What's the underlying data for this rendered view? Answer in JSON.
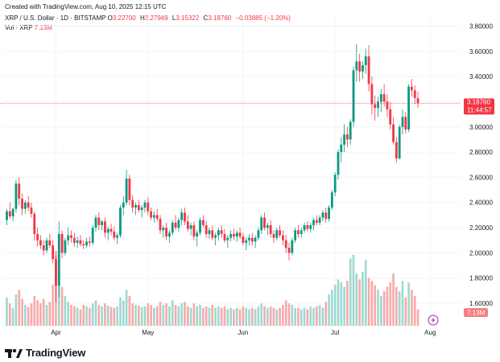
{
  "header": {
    "created": "Created with TradingView.com, Aug 10, 2025 12:15 UTC",
    "symbol": "XRP / U.S. Dollar · 1D · BITSTAMP",
    "ohlc": [
      {
        "k": "O",
        "v": "3.22700"
      },
      {
        "k": "H",
        "v": "3.27949"
      },
      {
        "k": "L",
        "v": "3.15322"
      },
      {
        "k": "C",
        "v": "3.18760"
      }
    ],
    "change": "−0.03885 (−1.20%)",
    "vol_label": "Vol · XRP",
    "vol_value": "7.13M"
  },
  "price_tag": {
    "price": "3.18760",
    "countdown": "11:44:57"
  },
  "vol_tag": "7.13M",
  "brand": "TradingView",
  "colors": {
    "up": "#089981",
    "down": "#f23645",
    "vol_up": "#9ed8d0",
    "vol_down": "#f7a9a9",
    "grid": "#f0f3fa"
  },
  "chart_data": {
    "type": "candlestick",
    "ylim": [
      1.4,
      3.9
    ],
    "yticks": [
      "3.80000",
      "3.60000",
      "3.40000",
      "3.20000",
      "3.00000",
      "2.80000",
      "2.60000",
      "2.40000",
      "2.20000",
      "2.00000",
      "1.80000",
      "1.60000"
    ],
    "xticks": [
      {
        "label": "Apr",
        "index": 16
      },
      {
        "label": "May",
        "index": 46
      },
      {
        "label": "Jun",
        "index": 77
      },
      {
        "label": "Jul",
        "index": 107
      },
      {
        "label": "Aug",
        "index": 138
      }
    ],
    "last_price": 3.1876,
    "candles": [
      [
        2.26,
        2.35,
        2.22,
        2.33
      ],
      [
        2.33,
        2.4,
        2.27,
        2.29
      ],
      [
        2.29,
        2.36,
        2.25,
        2.35
      ],
      [
        2.35,
        2.58,
        2.32,
        2.55
      ],
      [
        2.55,
        2.6,
        2.38,
        2.43
      ],
      [
        2.43,
        2.47,
        2.3,
        2.35
      ],
      [
        2.35,
        2.42,
        2.31,
        2.4
      ],
      [
        2.4,
        2.45,
        2.33,
        2.36
      ],
      [
        2.36,
        2.4,
        2.28,
        2.31
      ],
      [
        2.31,
        2.33,
        2.1,
        2.15
      ],
      [
        2.15,
        2.2,
        2.05,
        2.1
      ],
      [
        2.1,
        2.14,
        2.03,
        2.06
      ],
      [
        2.06,
        2.1,
        1.98,
        2.02
      ],
      [
        2.02,
        2.12,
        2.0,
        2.1
      ],
      [
        2.1,
        2.15,
        2.04,
        2.06
      ],
      [
        2.06,
        2.1,
        1.92,
        1.95
      ],
      [
        1.95,
        1.98,
        1.61,
        1.74
      ],
      [
        1.74,
        2.25,
        1.65,
        2.15
      ],
      [
        2.15,
        2.18,
        1.96,
        2.0
      ],
      [
        2.0,
        2.12,
        1.98,
        2.1
      ],
      [
        2.1,
        2.2,
        2.06,
        2.14
      ],
      [
        2.14,
        2.18,
        2.08,
        2.12
      ],
      [
        2.12,
        2.16,
        2.05,
        2.08
      ],
      [
        2.08,
        2.13,
        2.04,
        2.1
      ],
      [
        2.1,
        2.14,
        2.05,
        2.07
      ],
      [
        2.07,
        2.1,
        2.03,
        2.06
      ],
      [
        2.06,
        2.12,
        2.04,
        2.09
      ],
      [
        2.09,
        2.13,
        2.05,
        2.08
      ],
      [
        2.08,
        2.22,
        2.06,
        2.2
      ],
      [
        2.2,
        2.3,
        2.17,
        2.28
      ],
      [
        2.28,
        2.32,
        2.18,
        2.22
      ],
      [
        2.22,
        2.26,
        2.18,
        2.25
      ],
      [
        2.25,
        2.28,
        2.12,
        2.16
      ],
      [
        2.16,
        2.21,
        2.1,
        2.19
      ],
      [
        2.19,
        2.23,
        2.14,
        2.17
      ],
      [
        2.17,
        2.21,
        2.1,
        2.12
      ],
      [
        2.12,
        2.16,
        2.07,
        2.14
      ],
      [
        2.14,
        2.38,
        2.12,
        2.36
      ],
      [
        2.36,
        2.45,
        2.3,
        2.4
      ],
      [
        2.4,
        2.66,
        2.38,
        2.59
      ],
      [
        2.59,
        2.62,
        2.38,
        2.42
      ],
      [
        2.42,
        2.46,
        2.32,
        2.36
      ],
      [
        2.36,
        2.4,
        2.3,
        2.38
      ],
      [
        2.38,
        2.42,
        2.32,
        2.34
      ],
      [
        2.34,
        2.38,
        2.28,
        2.36
      ],
      [
        2.36,
        2.42,
        2.32,
        2.4
      ],
      [
        2.4,
        2.44,
        2.3,
        2.33
      ],
      [
        2.33,
        2.36,
        2.26,
        2.28
      ],
      [
        2.28,
        2.33,
        2.24,
        2.3
      ],
      [
        2.3,
        2.35,
        2.25,
        2.27
      ],
      [
        2.27,
        2.3,
        2.15,
        2.18
      ],
      [
        2.18,
        2.22,
        2.12,
        2.2
      ],
      [
        2.2,
        2.24,
        2.1,
        2.13
      ],
      [
        2.13,
        2.18,
        2.08,
        2.16
      ],
      [
        2.16,
        2.26,
        2.14,
        2.24
      ],
      [
        2.24,
        2.3,
        2.18,
        2.2
      ],
      [
        2.2,
        2.28,
        2.17,
        2.26
      ],
      [
        2.26,
        2.35,
        2.22,
        2.32
      ],
      [
        2.32,
        2.36,
        2.22,
        2.25
      ],
      [
        2.25,
        2.3,
        2.17,
        2.19
      ],
      [
        2.19,
        2.24,
        2.14,
        2.22
      ],
      [
        2.22,
        2.25,
        2.1,
        2.13
      ],
      [
        2.13,
        2.18,
        2.05,
        2.16
      ],
      [
        2.16,
        2.28,
        2.14,
        2.26
      ],
      [
        2.26,
        2.3,
        2.2,
        2.22
      ],
      [
        2.22,
        2.25,
        2.12,
        2.15
      ],
      [
        2.15,
        2.2,
        2.11,
        2.18
      ],
      [
        2.18,
        2.22,
        2.1,
        2.12
      ],
      [
        2.12,
        2.16,
        2.06,
        2.14
      ],
      [
        2.14,
        2.2,
        2.1,
        2.18
      ],
      [
        2.18,
        2.22,
        2.12,
        2.15
      ],
      [
        2.15,
        2.19,
        2.08,
        2.1
      ],
      [
        2.1,
        2.14,
        2.04,
        2.12
      ],
      [
        2.12,
        2.18,
        2.09,
        2.15
      ],
      [
        2.15,
        2.19,
        2.1,
        2.13
      ],
      [
        2.13,
        2.18,
        2.09,
        2.16
      ],
      [
        2.16,
        2.2,
        2.11,
        2.13
      ],
      [
        2.13,
        2.16,
        2.06,
        2.08
      ],
      [
        2.08,
        2.12,
        2.02,
        2.1
      ],
      [
        2.1,
        2.15,
        2.06,
        2.12
      ],
      [
        2.12,
        2.16,
        2.06,
        2.09
      ],
      [
        2.09,
        2.14,
        2.04,
        2.12
      ],
      [
        2.12,
        2.2,
        2.1,
        2.18
      ],
      [
        2.18,
        2.3,
        2.15,
        2.28
      ],
      [
        2.28,
        2.32,
        2.18,
        2.2
      ],
      [
        2.2,
        2.24,
        2.14,
        2.22
      ],
      [
        2.22,
        2.26,
        2.12,
        2.15
      ],
      [
        2.15,
        2.18,
        2.08,
        2.12
      ],
      [
        2.12,
        2.2,
        2.1,
        2.18
      ],
      [
        2.18,
        2.22,
        2.12,
        2.14
      ],
      [
        2.14,
        2.18,
        2.06,
        2.1
      ],
      [
        2.1,
        2.14,
        2.0,
        2.04
      ],
      [
        2.04,
        2.08,
        1.94,
        2.0
      ],
      [
        2.0,
        2.12,
        1.98,
        2.1
      ],
      [
        2.1,
        2.2,
        2.08,
        2.18
      ],
      [
        2.18,
        2.22,
        2.12,
        2.15
      ],
      [
        2.15,
        2.2,
        2.12,
        2.18
      ],
      [
        2.18,
        2.24,
        2.16,
        2.22
      ],
      [
        2.22,
        2.25,
        2.17,
        2.19
      ],
      [
        2.19,
        2.24,
        2.16,
        2.22
      ],
      [
        2.22,
        2.28,
        2.18,
        2.26
      ],
      [
        2.26,
        2.3,
        2.22,
        2.24
      ],
      [
        2.24,
        2.3,
        2.22,
        2.28
      ],
      [
        2.28,
        2.34,
        2.25,
        2.32
      ],
      [
        2.32,
        2.36,
        2.24,
        2.27
      ],
      [
        2.27,
        2.38,
        2.25,
        2.36
      ],
      [
        2.36,
        2.5,
        2.34,
        2.48
      ],
      [
        2.48,
        2.64,
        2.45,
        2.62
      ],
      [
        2.62,
        2.82,
        2.58,
        2.8
      ],
      [
        2.8,
        2.92,
        2.72,
        2.86
      ],
      [
        2.86,
        3.02,
        2.8,
        2.94
      ],
      [
        2.94,
        3.0,
        2.84,
        2.9
      ],
      [
        2.9,
        3.06,
        2.86,
        3.04
      ],
      [
        3.04,
        3.48,
        3.0,
        3.45
      ],
      [
        3.45,
        3.66,
        3.36,
        3.52
      ],
      [
        3.52,
        3.58,
        3.36,
        3.44
      ],
      [
        3.44,
        3.52,
        3.38,
        3.49
      ],
      [
        3.49,
        3.62,
        3.42,
        3.56
      ],
      [
        3.56,
        3.65,
        3.28,
        3.34
      ],
      [
        3.34,
        3.4,
        3.1,
        3.18
      ],
      [
        3.18,
        3.25,
        3.05,
        3.15
      ],
      [
        3.15,
        3.24,
        3.08,
        3.2
      ],
      [
        3.2,
        3.3,
        3.12,
        3.26
      ],
      [
        3.26,
        3.34,
        3.16,
        3.2
      ],
      [
        3.2,
        3.26,
        3.08,
        3.14
      ],
      [
        3.14,
        3.2,
        2.98,
        3.02
      ],
      [
        3.02,
        3.08,
        2.86,
        2.88
      ],
      [
        2.88,
        2.92,
        2.72,
        2.75
      ],
      [
        2.75,
        3.02,
        2.74,
        3.0
      ],
      [
        3.0,
        3.14,
        2.94,
        3.08
      ],
      [
        3.08,
        3.12,
        2.95,
        2.98
      ],
      [
        2.98,
        3.34,
        2.96,
        3.32
      ],
      [
        3.32,
        3.38,
        3.24,
        3.29
      ],
      [
        3.29,
        3.33,
        3.18,
        3.23
      ],
      [
        3.227,
        3.2795,
        3.1532,
        3.1876
      ]
    ],
    "volumes": [
      0.38,
      0.3,
      0.24,
      0.42,
      0.48,
      0.36,
      0.28,
      0.25,
      0.3,
      0.4,
      0.34,
      0.3,
      0.36,
      0.28,
      0.32,
      0.55,
      1.0,
      0.72,
      0.52,
      0.4,
      0.32,
      0.28,
      0.26,
      0.24,
      0.22,
      0.28,
      0.26,
      0.24,
      0.3,
      0.34,
      0.28,
      0.26,
      0.3,
      0.27,
      0.25,
      0.24,
      0.26,
      0.38,
      0.34,
      0.48,
      0.4,
      0.3,
      0.28,
      0.27,
      0.25,
      0.26,
      0.3,
      0.28,
      0.24,
      0.26,
      0.32,
      0.28,
      0.3,
      0.26,
      0.34,
      0.28,
      0.26,
      0.3,
      0.32,
      0.26,
      0.24,
      0.3,
      0.26,
      0.28,
      0.24,
      0.26,
      0.24,
      0.28,
      0.24,
      0.26,
      0.24,
      0.26,
      0.22,
      0.24,
      0.22,
      0.24,
      0.22,
      0.26,
      0.24,
      0.22,
      0.24,
      0.22,
      0.26,
      0.3,
      0.26,
      0.24,
      0.26,
      0.24,
      0.22,
      0.24,
      0.28,
      0.34,
      0.3,
      0.28,
      0.24,
      0.24,
      0.22,
      0.24,
      0.22,
      0.26,
      0.24,
      0.26,
      0.28,
      0.24,
      0.32,
      0.42,
      0.48,
      0.55,
      0.62,
      0.58,
      0.52,
      0.6,
      0.9,
      0.95,
      0.7,
      0.62,
      0.72,
      0.88,
      0.64,
      0.6,
      0.54,
      0.48,
      0.4,
      0.46,
      0.52,
      0.58,
      0.7,
      0.52,
      0.46,
      0.6,
      0.38,
      0.58,
      0.48,
      0.4,
      0.22
    ]
  }
}
